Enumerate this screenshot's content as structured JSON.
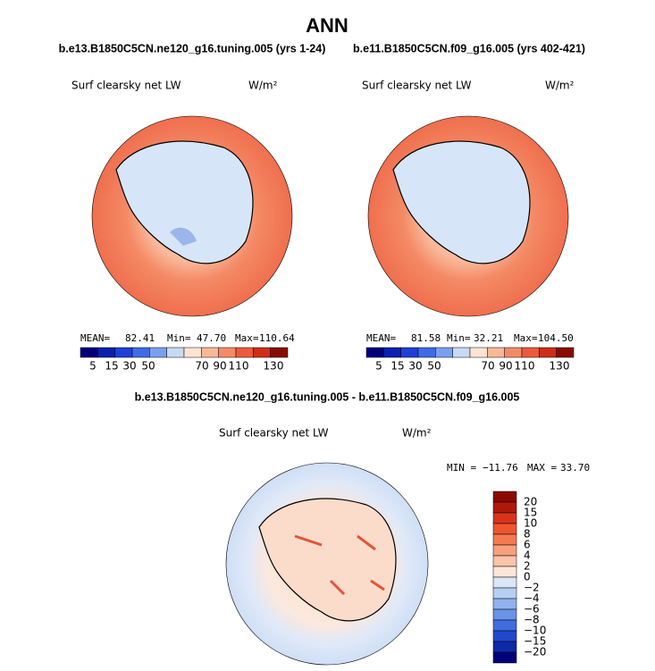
{
  "header": {
    "title": "ANN"
  },
  "panels": [
    {
      "subtitle": "b.e13.B1850C5CN.ne120_g16.tuning.005 (yrs 1-24)",
      "field": "Surf clearsky net LW",
      "units": "W/m²",
      "stats": [
        "MEAN=",
        "82.41",
        "Min=",
        "47.70",
        "Max=",
        "110.64"
      ]
    },
    {
      "subtitle": "b.e11.B1850C5CN.f09_g16.005 (yrs 402-421)",
      "field": "Surf clearsky net LW",
      "units": "W/m²",
      "stats": [
        "MEAN=",
        "81.58",
        "Min=",
        "32.21",
        "Max=",
        "104.50"
      ]
    },
    {
      "subtitle": "b.e13.B1850C5CN.ne120_g16.tuning.005 - b.e11.B1850C5CN.f09_g16.005",
      "field": "Surf clearsky net LW",
      "units": "W/m²",
      "stats": [
        "MIN =",
        "−11.76",
        "MAX =",
        "33.70"
      ]
    }
  ],
  "colorbar_main": [
    "5",
    "15",
    "30",
    "50",
    "70",
    "90",
    "110",
    "130"
  ],
  "colorbar_diff": [
    "20",
    "15",
    "10",
    "8",
    "6",
    "4",
    "2",
    "0",
    "−2",
    "−4",
    "−6",
    "−8",
    "−10",
    "−15",
    "−20"
  ]
}
